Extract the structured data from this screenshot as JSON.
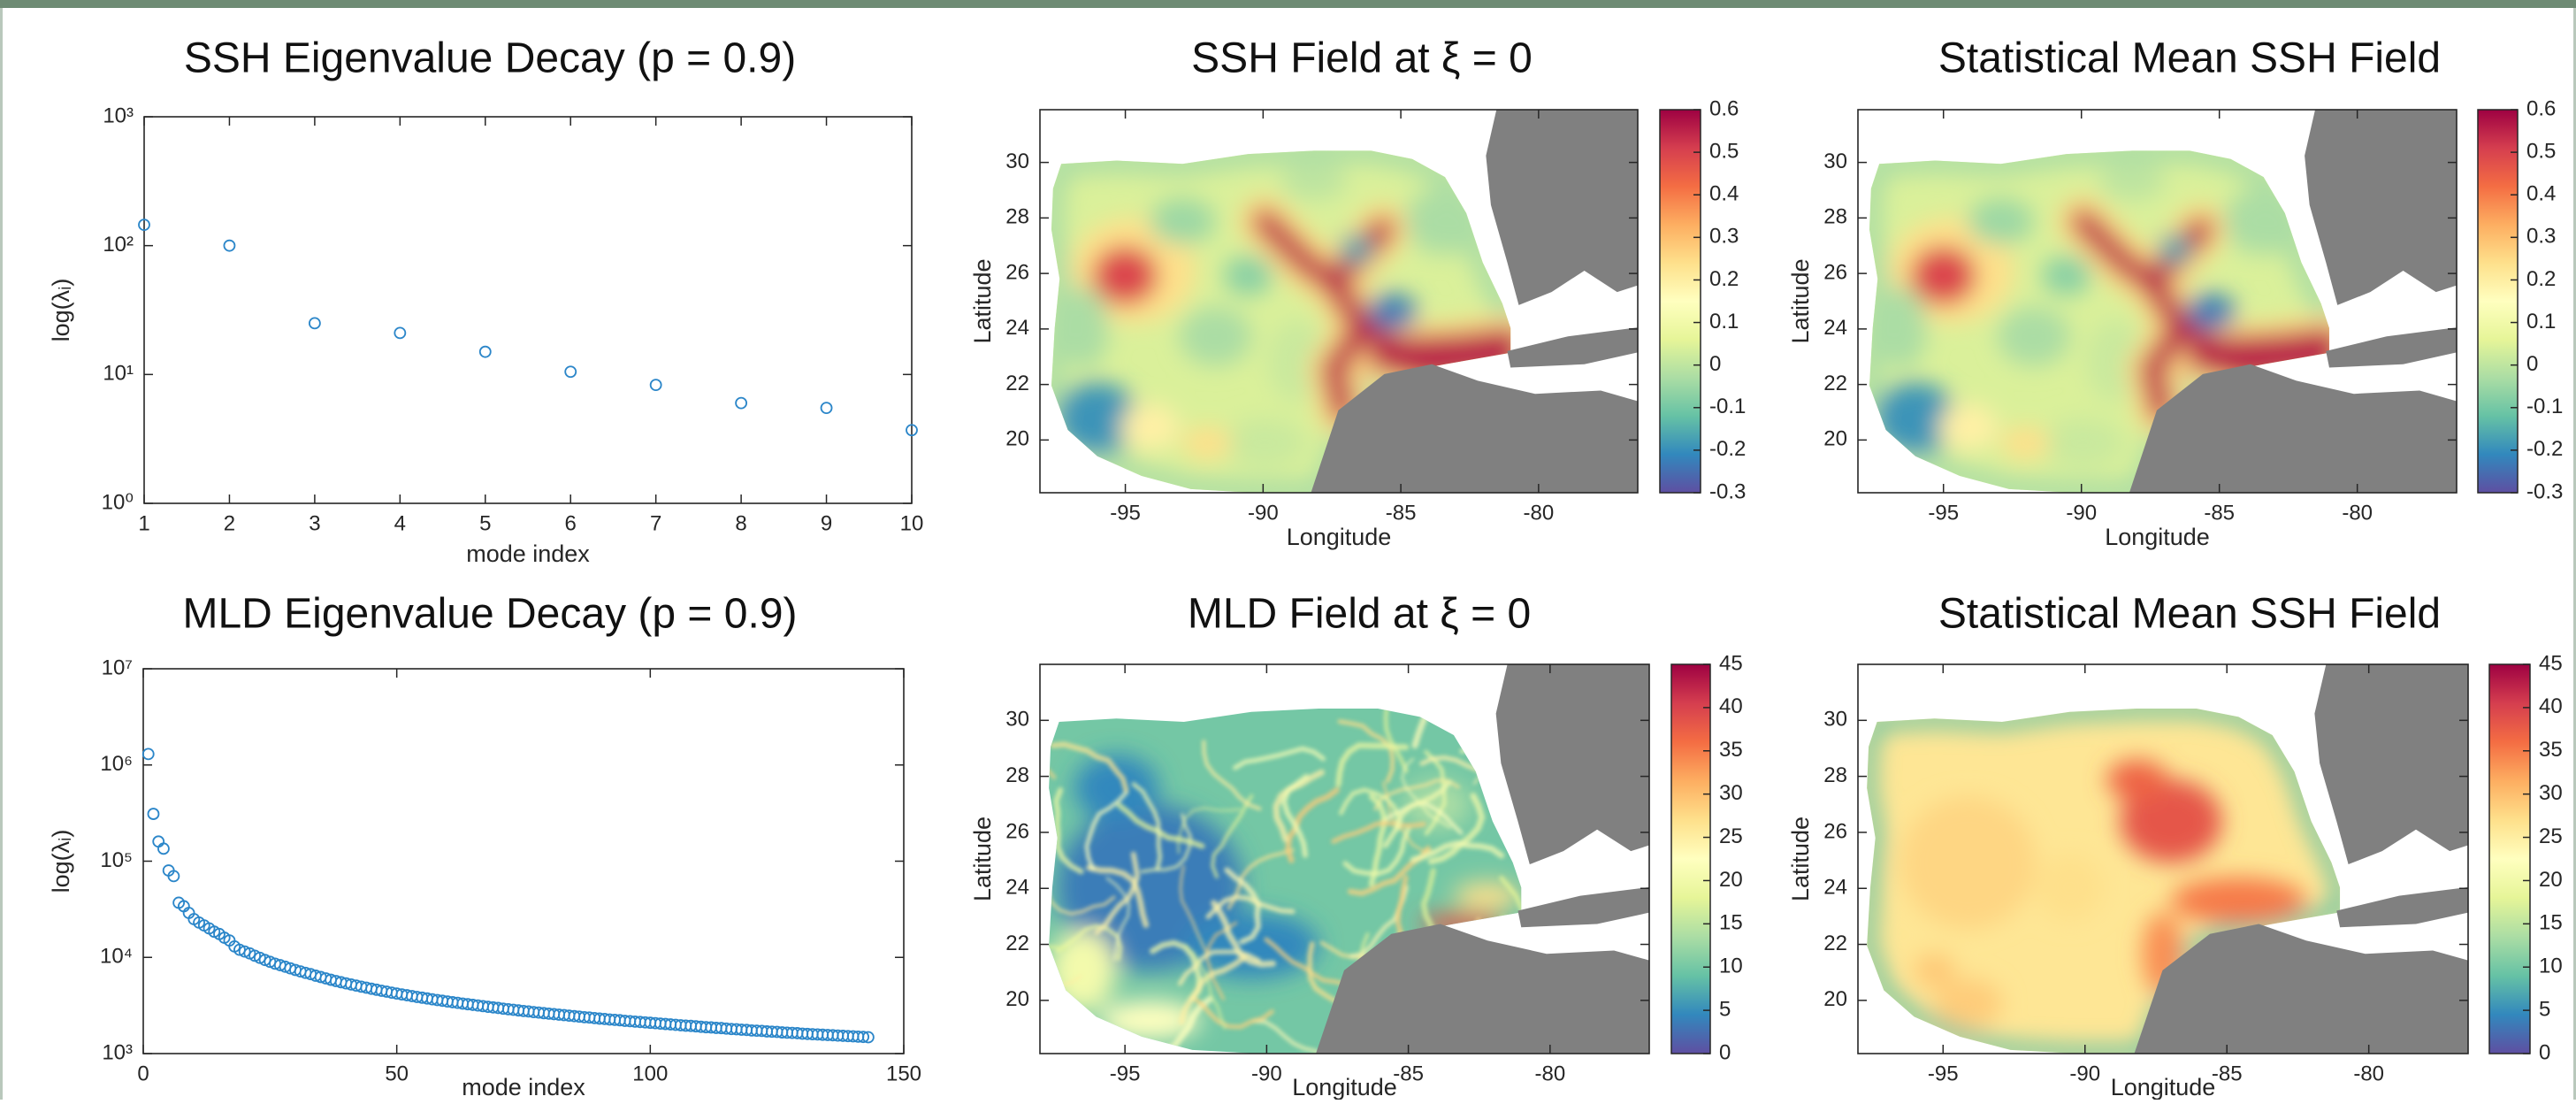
{
  "chart_data": [
    {
      "type": "scatter",
      "title": "SSH Eigenvalue Decay (p = 0.9)",
      "xlabel": "mode index",
      "ylabel": "log(λᵢ)",
      "x": [
        1,
        2,
        3,
        4,
        5,
        6,
        7,
        8,
        9,
        10
      ],
      "values": [
        145,
        100,
        25,
        21,
        15,
        10.5,
        8.3,
        6,
        5.5,
        3.7
      ],
      "xlim": [
        1,
        10
      ],
      "xticks": [
        1,
        2,
        3,
        4,
        5,
        6,
        7,
        8,
        9,
        10
      ],
      "ylim": [
        1,
        1000
      ],
      "yscale": "log",
      "yticks": [
        {
          "value": 1,
          "label": "10⁰"
        },
        {
          "value": 10,
          "label": "10¹"
        },
        {
          "value": 100,
          "label": "10²"
        },
        {
          "value": 1000,
          "label": "10³"
        }
      ],
      "color": "#2b86c9"
    },
    {
      "type": "heatmap",
      "title": "SSH Field at ξ = 0",
      "xlabel": "Longitude",
      "ylabel": "Latitude",
      "xlim": [
        -98.1,
        -76.4
      ],
      "xticks": [
        -95,
        -90,
        -85,
        -80
      ],
      "ylim": [
        18.1,
        31.9
      ],
      "yticks": [
        20,
        22,
        24,
        26,
        28,
        30
      ],
      "clim": [
        -0.3,
        0.6
      ],
      "cticks": [
        -0.3,
        -0.2,
        -0.1,
        0,
        0.1,
        0.2,
        0.3,
        0.4,
        0.5,
        0.6
      ],
      "colormap": [
        "#5e4fa2",
        "#3288bd",
        "#66c2a5",
        "#abdda4",
        "#e6f598",
        "#ffffbf",
        "#fee08b",
        "#fdae61",
        "#f46d43",
        "#d53e4f",
        "#9e0142"
      ]
    },
    {
      "type": "heatmap",
      "title": "Statistical Mean SSH Field",
      "xlabel": "Longitude",
      "ylabel": "Latitude",
      "xlim": [
        -98.1,
        -76.4
      ],
      "xticks": [
        -95,
        -90,
        -85,
        -80
      ],
      "ylim": [
        18.1,
        31.9
      ],
      "yticks": [
        20,
        22,
        24,
        26,
        28,
        30
      ],
      "clim": [
        -0.3,
        0.6
      ],
      "cticks": [
        -0.3,
        -0.2,
        -0.1,
        0,
        0.1,
        0.2,
        0.3,
        0.4,
        0.5,
        0.6
      ],
      "colormap": [
        "#5e4fa2",
        "#3288bd",
        "#66c2a5",
        "#abdda4",
        "#e6f598",
        "#ffffbf",
        "#fee08b",
        "#fdae61",
        "#f46d43",
        "#d53e4f",
        "#9e0142"
      ]
    },
    {
      "type": "scatter",
      "title": "MLD Eigenvalue Decay (p = 0.9)",
      "xlabel": "mode index",
      "ylabel": "log(λᵢ)",
      "x": [
        1,
        2,
        3,
        4,
        5,
        6,
        7,
        8,
        9,
        10,
        11,
        12,
        13,
        14,
        15,
        16,
        17,
        18,
        19,
        20,
        21,
        22,
        23,
        24,
        25,
        26,
        27,
        28,
        29,
        30,
        31,
        32,
        33,
        34,
        35,
        36,
        37,
        38,
        39,
        40,
        41,
        42,
        43,
        44,
        45,
        46,
        47,
        48,
        49,
        50,
        51,
        52,
        53,
        54,
        55,
        56,
        57,
        58,
        59,
        60,
        61,
        62,
        63,
        64,
        65,
        66,
        67,
        68,
        69,
        70,
        71,
        72,
        73,
        74,
        75,
        76,
        77,
        78,
        79,
        80,
        81,
        82,
        83,
        84,
        85,
        86,
        87,
        88,
        89,
        90,
        91,
        92,
        93,
        94,
        95,
        96,
        97,
        98,
        99,
        100,
        101,
        102,
        103,
        104,
        105,
        106,
        107,
        108,
        109,
        110,
        111,
        112,
        113,
        114,
        115,
        116,
        117,
        118,
        119,
        120,
        121,
        122,
        123,
        124,
        125,
        126,
        127,
        128,
        129,
        130,
        131,
        132,
        133,
        134,
        135,
        136,
        137,
        138,
        139,
        140,
        141,
        142,
        143
      ],
      "values": [
        1300000,
        310000,
        160000,
        135000,
        80000,
        70000,
        37000,
        34000,
        29000,
        25000,
        23000,
        21500,
        20000,
        18500,
        17500,
        16000,
        15000,
        13000,
        12000,
        11500,
        11000,
        10400,
        9900,
        9400,
        9000,
        8600,
        8300,
        8000,
        7700,
        7400,
        7150,
        6900,
        6700,
        6450,
        6250,
        6050,
        5850,
        5680,
        5520,
        5370,
        5230,
        5090,
        4960,
        4840,
        4720,
        4610,
        4500,
        4400,
        4300,
        4210,
        4120,
        4040,
        3960,
        3880,
        3810,
        3740,
        3670,
        3600,
        3540,
        3480,
        3420,
        3370,
        3310,
        3260,
        3210,
        3160,
        3110,
        3060,
        3020,
        2980,
        2930,
        2890,
        2850,
        2810,
        2770,
        2740,
        2700,
        2670,
        2630,
        2600,
        2570,
        2540,
        2510,
        2480,
        2450,
        2420,
        2390,
        2370,
        2340,
        2310,
        2290,
        2260,
        2240,
        2220,
        2190,
        2170,
        2150,
        2130,
        2110,
        2090,
        2070,
        2050,
        2030,
        2010,
        1990,
        1970,
        1950,
        1940,
        1920,
        1900,
        1880,
        1870,
        1850,
        1840,
        1820,
        1800,
        1790,
        1770,
        1760,
        1740,
        1730,
        1720,
        1700,
        1690,
        1680,
        1660,
        1650,
        1640,
        1630,
        1610,
        1600,
        1590,
        1580,
        1570,
        1560,
        1550,
        1540,
        1530,
        1520,
        1510,
        1500,
        1490,
        1480
      ],
      "xlim": [
        0,
        150
      ],
      "xticks": [
        0,
        50,
        100,
        150
      ],
      "ylim": [
        1000,
        10000000
      ],
      "yscale": "log",
      "yticks": [
        {
          "value": 1000,
          "label": "10³"
        },
        {
          "value": 10000,
          "label": "10⁴"
        },
        {
          "value": 100000,
          "label": "10⁵"
        },
        {
          "value": 1000000,
          "label": "10⁶"
        },
        {
          "value": 10000000,
          "label": "10⁷"
        }
      ],
      "color": "#2b86c9"
    },
    {
      "type": "heatmap",
      "title": "MLD Field at ξ = 0",
      "xlabel": "Longitude",
      "ylabel": "Latitude",
      "xlim": [
        -98,
        -76.5
      ],
      "xticks": [
        -95,
        -90,
        -85,
        -80
      ],
      "ylim": [
        18.1,
        32
      ],
      "yticks": [
        20,
        22,
        24,
        26,
        28,
        30
      ],
      "clim": [
        0,
        45
      ],
      "cticks": [
        0,
        5,
        10,
        15,
        20,
        25,
        30,
        35,
        40,
        45
      ],
      "colormap": [
        "#5e4fa2",
        "#3288bd",
        "#66c2a5",
        "#abdda4",
        "#e6f598",
        "#ffffbf",
        "#fee08b",
        "#fdae61",
        "#f46d43",
        "#d53e4f",
        "#9e0142"
      ]
    },
    {
      "type": "heatmap",
      "title": "Statistical Mean SSH Field",
      "xlabel": "Longitude",
      "ylabel": "Latitude",
      "xlim": [
        -98,
        -76.5
      ],
      "xticks": [
        -95,
        -90,
        -85,
        -80
      ],
      "ylim": [
        18.1,
        32
      ],
      "yticks": [
        20,
        22,
        24,
        26,
        28,
        30
      ],
      "clim": [
        0,
        45
      ],
      "cticks": [
        0,
        5,
        10,
        15,
        20,
        25,
        30,
        35,
        40,
        45
      ],
      "colormap": [
        "#5e4fa2",
        "#3288bd",
        "#66c2a5",
        "#abdda4",
        "#e6f598",
        "#ffffbf",
        "#fee08b",
        "#fdae61",
        "#f46d43",
        "#d53e4f",
        "#9e0142"
      ]
    }
  ]
}
